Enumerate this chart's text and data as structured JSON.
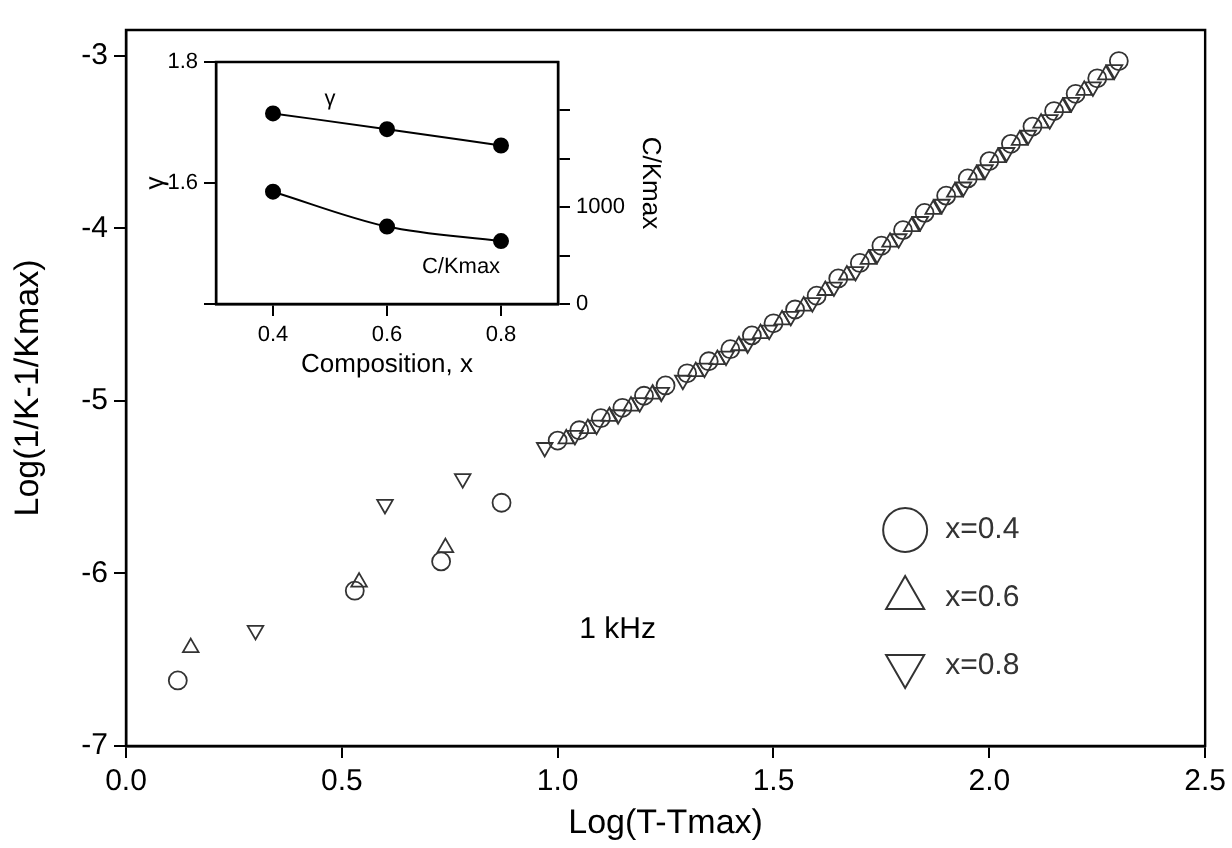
{
  "chart_data": [
    {
      "type": "scatter",
      "xlabel": "Log(T-Tmax)",
      "ylabel": "Log(1/K-1/Kmax)",
      "xlim": [
        0.0,
        2.5
      ],
      "ylim": [
        -7,
        -2.85
      ],
      "xticks": [
        {
          "value": 0,
          "label": "0.0"
        },
        0.5,
        {
          "value": 1,
          "label": "1.0"
        },
        1.5,
        {
          "value": 2,
          "label": "2.0"
        },
        2.5
      ],
      "yticks": [
        -7,
        -6,
        -5,
        -4,
        -3
      ],
      "grid": false,
      "legend": "bottom right",
      "annotations": [
        "1 kHz"
      ],
      "series": [
        {
          "name": "x=0.4",
          "color": "#333333",
          "marker": "circle",
          "x": [
            0.12,
            0.53,
            0.73,
            0.87,
            1.0,
            1.05,
            1.1,
            1.15,
            1.2,
            1.25,
            1.3,
            1.35,
            1.4,
            1.45,
            1.5,
            1.55,
            1.6,
            1.65,
            1.7,
            1.75,
            1.8,
            1.85,
            1.9,
            1.95,
            2.0,
            2.05,
            2.1,
            2.15,
            2.2,
            2.25,
            2.3
          ],
          "values": [
            -6.62,
            -6.1,
            -5.93,
            -5.59,
            -5.23,
            -5.17,
            -5.1,
            -5.04,
            -4.97,
            -4.91,
            -4.84,
            -4.77,
            -4.7,
            -4.62,
            -4.55,
            -4.47,
            -4.39,
            -4.29,
            -4.2,
            -4.1,
            -4.01,
            -3.91,
            -3.81,
            -3.71,
            -3.61,
            -3.51,
            -3.41,
            -3.32,
            -3.22,
            -3.13,
            -3.03
          ]
        },
        {
          "name": "x=0.6",
          "color": "#333333",
          "marker": "triangle",
          "x": [
            0.15,
            0.54,
            0.74,
            1.02,
            1.07,
            1.12,
            1.17,
            1.22,
            1.32,
            1.37,
            1.42,
            1.47,
            1.52,
            1.57,
            1.62,
            1.67,
            1.72,
            1.77,
            1.82,
            1.87,
            1.92,
            1.97,
            2.02,
            2.07,
            2.12,
            2.17,
            2.22,
            2.27
          ],
          "values": [
            -6.43,
            -6.05,
            -5.85,
            -5.22,
            -5.16,
            -5.09,
            -5.03,
            -4.96,
            -4.83,
            -4.76,
            -4.68,
            -4.61,
            -4.53,
            -4.45,
            -4.36,
            -4.27,
            -4.18,
            -4.08,
            -3.99,
            -3.89,
            -3.79,
            -3.69,
            -3.59,
            -3.49,
            -3.39,
            -3.3,
            -3.2,
            -3.11
          ]
        },
        {
          "name": "x=0.8",
          "color": "#333333",
          "marker": "triangle-down",
          "x": [
            0.3,
            0.6,
            0.78,
            0.97,
            1.04,
            1.09,
            1.14,
            1.19,
            1.24,
            1.29,
            1.34,
            1.39,
            1.44,
            1.49,
            1.54,
            1.59,
            1.64,
            1.69,
            1.74,
            1.79,
            1.84,
            1.89,
            1.94,
            1.99,
            2.04,
            2.09,
            2.14,
            2.19,
            2.24,
            2.29
          ],
          "values": [
            -6.33,
            -5.6,
            -5.45,
            -5.27,
            -5.2,
            -5.14,
            -5.08,
            -5.01,
            -4.95,
            -4.88,
            -4.81,
            -4.74,
            -4.67,
            -4.59,
            -4.51,
            -4.43,
            -4.34,
            -4.25,
            -4.15,
            -4.06,
            -3.96,
            -3.86,
            -3.76,
            -3.66,
            -3.56,
            -3.46,
            -3.37,
            -3.27,
            -3.18,
            -3.08
          ]
        }
      ]
    },
    {
      "type": "line",
      "xlabel": "Composition, x",
      "ylabel": "γ",
      "y2label": "C/Kmax",
      "xlim": [
        0.3,
        0.9
      ],
      "ylim": [
        1.4,
        1.8
      ],
      "y2lim": [
        0,
        2500
      ],
      "xticks": [
        0.4,
        0.6,
        0.8
      ],
      "yticks": [
        {
          "value": 1.4,
          "label": null
        },
        1.6,
        1.8
      ],
      "y2ticks": [
        0,
        {
          "value": 500,
          "label": null
        },
        1000,
        {
          "value": 1500,
          "label": null
        },
        {
          "value": 2000,
          "label": null
        }
      ],
      "grid": false,
      "legend": false,
      "marker": "circle",
      "series": [
        {
          "name": "γ",
          "color": "#000000",
          "x": [
            0.4,
            0.6,
            0.8
          ],
          "values": [
            1.715,
            1.689,
            1.662
          ]
        },
        {
          "name": "C/Kmax",
          "color": "#000000",
          "axis": "y2",
          "x": [
            0.4,
            0.6,
            0.8
          ],
          "values": [
            1160,
            800,
            650
          ]
        }
      ]
    }
  ]
}
